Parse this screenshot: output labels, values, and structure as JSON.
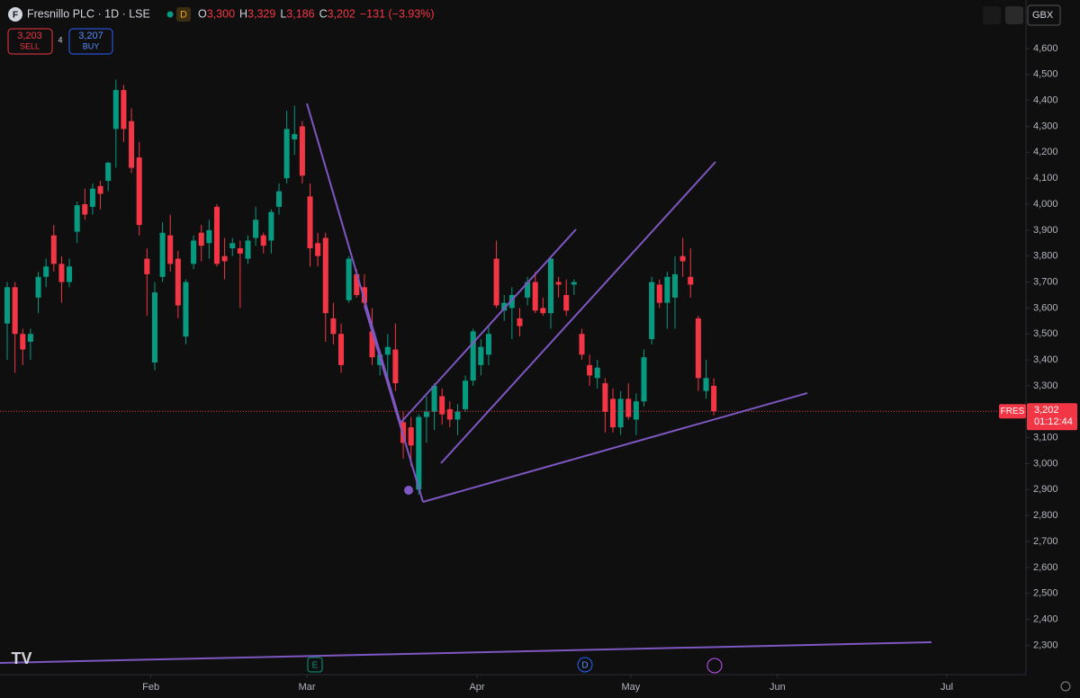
{
  "chart_data": {
    "type": "candlestick",
    "title": "Fresnillo PLC · 1D · LSE",
    "interval_badge": "D",
    "ohlc_header": {
      "labels": [
        "O",
        "H",
        "L",
        "C"
      ],
      "values": [
        3300,
        3329,
        3186,
        3202
      ],
      "value_labels": [
        "3,300",
        "3,329",
        "3,186",
        "3,202"
      ],
      "change": "−131 (−3.93%)"
    },
    "trade": {
      "sell": {
        "value": 3203,
        "label": "3,203",
        "caption": "SELL"
      },
      "spread": 4,
      "buy": {
        "value": 3207,
        "label": "3,207",
        "caption": "BUY"
      }
    },
    "currency": "GBX",
    "symbol": "FRES",
    "last_price": {
      "value": 3202,
      "label": "3,202"
    },
    "countdown": "01:12:44",
    "event_markers": [
      "E",
      "D"
    ],
    "up_color": "#089981",
    "down_color": "#f23645",
    "open": [
      3540,
      3680,
      3500,
      3470,
      3640,
      3720,
      3880,
      3770,
      3700,
      3894,
      4000,
      3990,
      4070,
      4090,
      4290,
      4440,
      4320,
      4180,
      3790,
      3390,
      3720,
      3880,
      3790,
      3490,
      3770,
      3890,
      3850,
      3990,
      3800,
      3830,
      3830,
      3790,
      3870,
      3880,
      3860,
      3990,
      4100,
      4250,
      4300,
      4030,
      3850,
      3870,
      3560,
      3500,
      3630,
      3730,
      3680,
      3510,
      3380,
      3420,
      3440,
      3160,
      3140,
      2900,
      3180,
      3200,
      3260,
      3210,
      3170,
      3210,
      3320,
      3380,
      3420,
      3790,
      3590,
      3600,
      3560,
      3640,
      3700,
      3600,
      3580,
      3700,
      3650,
      3690,
      3500,
      3380,
      3330,
      3310,
      3250,
      3140,
      3250,
      3170,
      3240,
      3480,
      3690,
      3620,
      3640,
      3800,
      3720,
      3560,
      3280,
      3300
    ],
    "high": [
      3700,
      3700,
      3520,
      3520,
      3740,
      3790,
      3920,
      3800,
      3790,
      4010,
      4060,
      4080,
      4090,
      4163,
      4480,
      4460,
      4370,
      4240,
      3830,
      3700,
      3930,
      3960,
      3820,
      3710,
      3880,
      3920,
      3940,
      4000,
      3870,
      3870,
      3860,
      3880,
      3990,
      3890,
      3980,
      4080,
      4360,
      4380,
      4320,
      4080,
      3890,
      3890,
      3620,
      3540,
      3800,
      3750,
      3730,
      3600,
      3440,
      3500,
      3540,
      3200,
      3180,
      3190,
      3260,
      3310,
      3290,
      3240,
      3230,
      3340,
      3520,
      3480,
      3530,
      3860,
      3650,
      3680,
      3600,
      3720,
      3740,
      3640,
      3800,
      3720,
      3710,
      3710,
      3520,
      3420,
      3400,
      3330,
      3290,
      3280,
      3310,
      3270,
      3440,
      3720,
      3710,
      3740,
      3800,
      3870,
      3830,
      3570,
      3400,
      3329
    ],
    "low": [
      3400,
      3350,
      3380,
      3400,
      3580,
      3680,
      3740,
      3620,
      3680,
      3850,
      3940,
      3960,
      3980,
      4050,
      4140,
      4240,
      4120,
      3880,
      3570,
      3360,
      3700,
      3740,
      3560,
      3460,
      3750,
      3780,
      3790,
      3760,
      3710,
      3800,
      3600,
      3770,
      3840,
      3810,
      3810,
      3960,
      4080,
      4190,
      4080,
      3760,
      3760,
      3470,
      3460,
      3350,
      3620,
      3640,
      3600,
      3380,
      3340,
      3330,
      3280,
      3020,
      2990,
      2880,
      3080,
      3130,
      3150,
      3140,
      3110,
      3200,
      3300,
      3340,
      3380,
      3600,
      3550,
      3480,
      3490,
      3610,
      3580,
      3570,
      3520,
      3640,
      3570,
      3650,
      3400,
      3300,
      3290,
      3120,
      3120,
      3110,
      3170,
      3110,
      3220,
      3460,
      3600,
      3520,
      3520,
      3720,
      3640,
      3280,
      3250,
      3186
    ],
    "close": [
      3680,
      3500,
      3440,
      3500,
      3720,
      3760,
      3770,
      3700,
      3760,
      3996,
      3960,
      4060,
      4040,
      4160,
      4440,
      4290,
      4140,
      3920,
      3730,
      3660,
      3890,
      3770,
      3610,
      3700,
      3860,
      3840,
      3900,
      3770,
      3780,
      3850,
      3810,
      3860,
      3940,
      3840,
      3970,
      4050,
      4290,
      4270,
      4110,
      3830,
      3800,
      3580,
      3500,
      3380,
      3790,
      3650,
      3620,
      3410,
      3420,
      3450,
      3310,
      3080,
      3070,
      3180,
      3200,
      3300,
      3190,
      3170,
      3200,
      3320,
      3510,
      3450,
      3500,
      3610,
      3620,
      3650,
      3530,
      3700,
      3590,
      3580,
      3790,
      3690,
      3590,
      3700,
      3420,
      3340,
      3370,
      3200,
      3140,
      3250,
      3180,
      3240,
      3410,
      3700,
      3620,
      3720,
      3730,
      3780,
      3690,
      3330,
      3330,
      3202
    ],
    "xlim": [
      -0.93,
      131.2
    ],
    "xticks": [
      {
        "value": 18.5,
        "label": "Feb"
      },
      {
        "value": 38.6,
        "label": "Mar"
      },
      {
        "value": 60.5,
        "label": "Apr"
      },
      {
        "value": 80.3,
        "label": "May"
      },
      {
        "value": 99.2,
        "label": "Jun"
      },
      {
        "value": 121,
        "label": "Jul"
      }
    ],
    "ylim": [
      2187,
      4787
    ],
    "yticks": [
      {
        "value": 2300,
        "label": "2,300"
      },
      {
        "value": 2400,
        "label": "2,400"
      },
      {
        "value": 2500,
        "label": "2,500"
      },
      {
        "value": 2600,
        "label": "2,600"
      },
      {
        "value": 2700,
        "label": "2,700"
      },
      {
        "value": 2800,
        "label": "2,800"
      },
      {
        "value": 2900,
        "label": "2,900"
      },
      {
        "value": 3000,
        "label": "3,000"
      },
      {
        "value": 3100,
        "label": "3,100"
      },
      {
        "value": 3200,
        "label": "3,200"
      },
      {
        "value": 3300,
        "label": "3,300"
      },
      {
        "value": 3400,
        "label": "3,400"
      },
      {
        "value": 3500,
        "label": "3,500"
      },
      {
        "value": 3600,
        "label": "3,600"
      },
      {
        "value": 3700,
        "label": "3,700"
      },
      {
        "value": 3800,
        "label": "3,800"
      },
      {
        "value": 3900,
        "label": "3,900"
      },
      {
        "value": 4000,
        "label": "4,000"
      },
      {
        "value": 4100,
        "label": "4,100"
      },
      {
        "value": 4200,
        "label": "4,200"
      },
      {
        "value": 4300,
        "label": "4,300"
      },
      {
        "value": 4400,
        "label": "4,400"
      },
      {
        "value": 4500,
        "label": "4,500"
      },
      {
        "value": 4600,
        "label": "4,600"
      }
    ],
    "grid": false
  }
}
